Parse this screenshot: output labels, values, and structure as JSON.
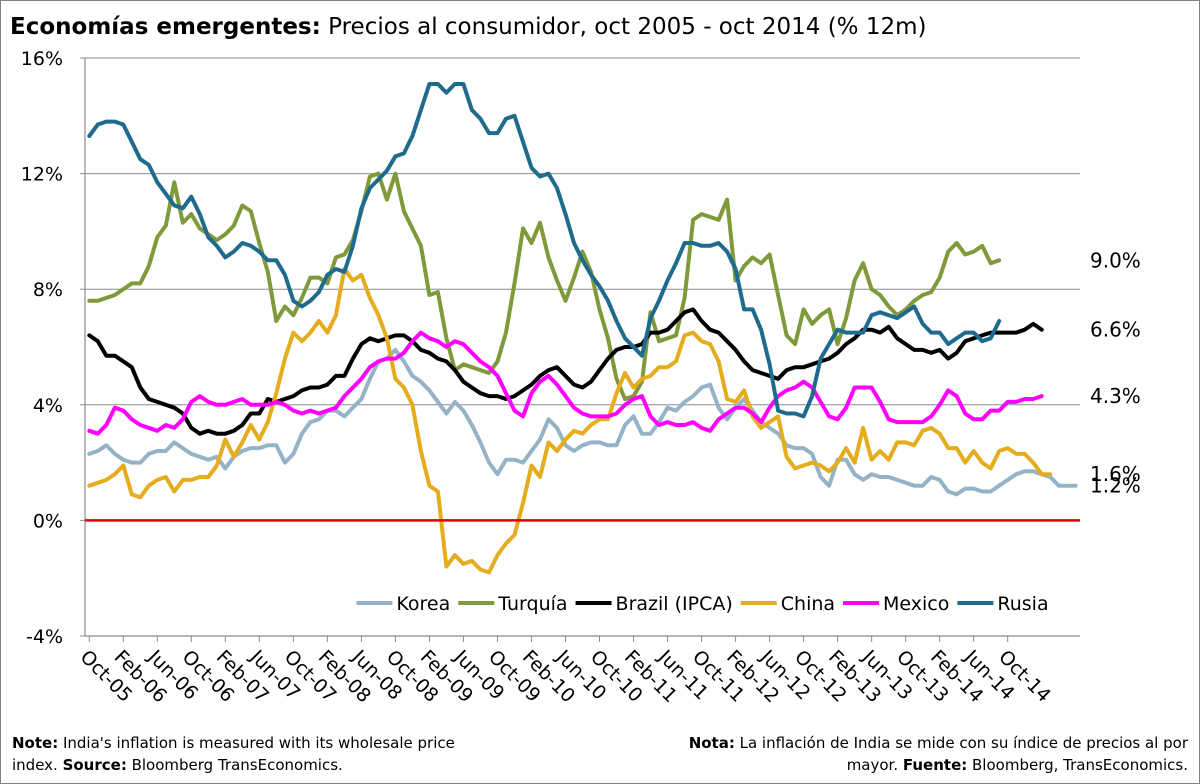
{
  "header": {
    "title_bold": "Economías emergentes:",
    "title_rest": " Precios al consumidor, oct 2005 - oct 2014 (% 12m)"
  },
  "notes": {
    "en_label": "Note:",
    "en_text": " India's inflation is measured with its wholesale price index. ",
    "en_source_label": "Source:",
    "en_source": "  Bloomberg TransEconomics.",
    "es_label": "Nota:",
    "es_text": " La inflación de India se mide con su índice de precios al por mayor. ",
    "es_source_label": "Fuente:",
    "es_source": "  Bloomberg, TransEconomics."
  },
  "chart_data": {
    "type": "line",
    "title": "Economías emergentes: Precios al consumidor, oct 2005 - oct 2014 (% 12m)",
    "xlabel": "",
    "ylabel": "",
    "x_start": "Oct-05",
    "x_end": "Oct-14",
    "x_ticks": [
      "Oct-05",
      "Feb-06",
      "Jun-06",
      "Oct-06",
      "Feb-07",
      "Jun-07",
      "Oct-07",
      "Feb-08",
      "Jun-08",
      "Oct-08",
      "Feb-09",
      "Jun-09",
      "Oct-09",
      "Feb-10",
      "Jun-10",
      "Oct-10",
      "Feb-11",
      "Jun-11",
      "Oct-11",
      "Feb-12",
      "Jun-12",
      "Oct-12",
      "Feb-13",
      "Jun-13",
      "Oct-13",
      "Feb-14",
      "Jun-14",
      "Oct-14"
    ],
    "y_ticks": [
      "-4%",
      "0%",
      "4%",
      "8%",
      "12%",
      "16%"
    ],
    "ylim": [
      -4,
      16
    ],
    "grid": "horizontal",
    "legend_position": "bottom-center",
    "zero_line_color": "#e00000",
    "end_labels": [
      "9.0%",
      "6.6%",
      "4.3%",
      "1.6%",
      "1.2%"
    ],
    "series": [
      {
        "name": "Korea",
        "color": "#95b3c6",
        "values": [
          2.3,
          2.4,
          2.6,
          2.3,
          2.1,
          2.0,
          2.0,
          2.3,
          2.4,
          2.4,
          2.7,
          2.5,
          2.3,
          2.2,
          2.1,
          2.2,
          1.8,
          2.2,
          2.4,
          2.5,
          2.5,
          2.6,
          2.6,
          2.0,
          2.3,
          3.0,
          3.4,
          3.5,
          3.8,
          3.8,
          3.6,
          3.9,
          4.2,
          4.9,
          5.5,
          5.6,
          5.9,
          5.5,
          5.0,
          4.8,
          4.5,
          4.1,
          3.7,
          4.1,
          3.8,
          3.3,
          2.7,
          2.0,
          1.6,
          2.1,
          2.1,
          2.0,
          2.4,
          2.8,
          3.5,
          3.2,
          2.6,
          2.4,
          2.6,
          2.7,
          2.7,
          2.6,
          2.6,
          3.3,
          3.6,
          3.0,
          3.0,
          3.4,
          3.9,
          3.8,
          4.1,
          4.3,
          4.6,
          4.7,
          3.9,
          3.5,
          3.9,
          4.2,
          3.8,
          3.4,
          3.2,
          3.0,
          2.6,
          2.5,
          2.5,
          2.3,
          1.5,
          1.2,
          2.1,
          2.1,
          1.6,
          1.4,
          1.6,
          1.5,
          1.5,
          1.4,
          1.3,
          1.2,
          1.2,
          1.5,
          1.4,
          1.0,
          0.9,
          1.1,
          1.1,
          1.0,
          1.0,
          1.2,
          1.4,
          1.6,
          1.7,
          1.7,
          1.6,
          1.5,
          1.2,
          1.2,
          1.2
        ]
      },
      {
        "name": "Turquía",
        "color": "#7f9a3a",
        "values": [
          7.6,
          7.6,
          7.7,
          7.8,
          8.0,
          8.2,
          8.2,
          8.8,
          9.8,
          10.2,
          11.7,
          10.3,
          10.6,
          10.1,
          9.9,
          9.7,
          9.9,
          10.2,
          10.9,
          10.7,
          9.6,
          8.6,
          6.9,
          7.4,
          7.1,
          7.7,
          8.4,
          8.4,
          8.2,
          9.1,
          9.2,
          9.7,
          10.7,
          11.9,
          12.0,
          11.1,
          12.0,
          10.7,
          10.1,
          9.5,
          7.8,
          7.9,
          6.3,
          5.2,
          5.4,
          5.3,
          5.2,
          5.1,
          5.5,
          6.5,
          8.2,
          10.1,
          9.6,
          10.3,
          9.1,
          8.3,
          7.6,
          8.4,
          9.3,
          8.6,
          7.3,
          6.3,
          4.9,
          4.2,
          4.3,
          4.8,
          7.2,
          6.2,
          6.3,
          6.4,
          7.7,
          10.4,
          10.6,
          10.5,
          10.4,
          11.1,
          8.3,
          8.8,
          9.1,
          8.9,
          9.2,
          7.8,
          6.4,
          6.1,
          7.3,
          6.8,
          7.1,
          7.3,
          6.1,
          7.0,
          8.3,
          8.9,
          8.0,
          7.8,
          7.4,
          7.1,
          7.3,
          7.6,
          7.8,
          7.9,
          8.4,
          9.3,
          9.6,
          9.2,
          9.3,
          9.5,
          8.9,
          9.0
        ]
      },
      {
        "name": "Brazil (IPCA)",
        "color": "#000000",
        "values": [
          6.4,
          6.2,
          5.7,
          5.7,
          5.5,
          5.3,
          4.6,
          4.2,
          4.1,
          4.0,
          3.9,
          3.7,
          3.2,
          3.0,
          3.1,
          3.0,
          3.0,
          3.1,
          3.3,
          3.7,
          3.7,
          4.2,
          4.1,
          4.2,
          4.3,
          4.5,
          4.6,
          4.6,
          4.7,
          5.0,
          5.0,
          5.6,
          6.1,
          6.3,
          6.2,
          6.3,
          6.4,
          6.4,
          6.2,
          5.9,
          5.8,
          5.6,
          5.5,
          5.2,
          4.8,
          4.6,
          4.4,
          4.3,
          4.3,
          4.2,
          4.3,
          4.5,
          4.7,
          5.0,
          5.2,
          5.3,
          5.0,
          4.7,
          4.6,
          4.8,
          5.2,
          5.6,
          5.9,
          6.0,
          6.0,
          6.1,
          6.5,
          6.5,
          6.6,
          6.9,
          7.2,
          7.3,
          6.9,
          6.6,
          6.5,
          6.2,
          5.9,
          5.5,
          5.2,
          5.1,
          5.0,
          4.9,
          5.2,
          5.3,
          5.3,
          5.4,
          5.5,
          5.6,
          5.8,
          6.1,
          6.3,
          6.6,
          6.6,
          6.5,
          6.7,
          6.3,
          6.1,
          5.9,
          5.9,
          5.8,
          5.9,
          5.6,
          5.8,
          6.2,
          6.3,
          6.4,
          6.5,
          6.5,
          6.5,
          6.5,
          6.6,
          6.8,
          6.6
        ]
      },
      {
        "name": "China",
        "color": "#e5ac1e",
        "values": [
          1.2,
          1.3,
          1.4,
          1.6,
          1.9,
          0.9,
          0.8,
          1.2,
          1.4,
          1.5,
          1.0,
          1.4,
          1.4,
          1.5,
          1.5,
          1.9,
          2.8,
          2.2,
          2.7,
          3.3,
          2.8,
          3.4,
          4.4,
          5.6,
          6.5,
          6.2,
          6.5,
          6.9,
          6.5,
          7.1,
          8.7,
          8.3,
          8.5,
          7.7,
          7.1,
          6.3,
          4.9,
          4.6,
          4.0,
          2.4,
          1.2,
          1.0,
          -1.6,
          -1.2,
          -1.5,
          -1.4,
          -1.7,
          -1.8,
          -1.2,
          -0.8,
          -0.5,
          0.6,
          1.9,
          1.5,
          2.7,
          2.4,
          2.8,
          3.1,
          3.0,
          3.3,
          3.5,
          3.5,
          4.4,
          5.1,
          4.6,
          4.9,
          5.0,
          5.3,
          5.3,
          5.5,
          6.4,
          6.5,
          6.2,
          6.1,
          5.5,
          4.2,
          4.1,
          4.5,
          3.6,
          3.2,
          3.4,
          3.6,
          2.2,
          1.8,
          1.9,
          2.0,
          1.9,
          1.7,
          2.0,
          2.5,
          2.0,
          3.2,
          2.1,
          2.4,
          2.1,
          2.7,
          2.7,
          2.6,
          3.1,
          3.2,
          3.0,
          2.5,
          2.5,
          2.0,
          2.4,
          2.0,
          1.8,
          2.4,
          2.5,
          2.3,
          2.3,
          2.0,
          1.6,
          1.6
        ]
      },
      {
        "name": "Mexico",
        "color": "#ff00ff",
        "values": [
          3.1,
          3.0,
          3.3,
          3.9,
          3.8,
          3.5,
          3.3,
          3.2,
          3.1,
          3.3,
          3.2,
          3.5,
          4.1,
          4.3,
          4.1,
          4.0,
          4.0,
          4.1,
          4.2,
          4.0,
          4.0,
          4.0,
          4.1,
          4.0,
          3.8,
          3.7,
          3.8,
          3.7,
          3.8,
          3.9,
          4.3,
          4.6,
          4.9,
          5.3,
          5.5,
          5.6,
          5.6,
          5.8,
          6.2,
          6.5,
          6.3,
          6.2,
          6.0,
          6.2,
          6.1,
          5.8,
          5.5,
          5.3,
          5.0,
          4.4,
          3.8,
          3.6,
          4.4,
          4.8,
          5.0,
          4.7,
          4.3,
          3.9,
          3.7,
          3.6,
          3.6,
          3.6,
          3.7,
          4.0,
          4.2,
          4.3,
          3.6,
          3.3,
          3.4,
          3.3,
          3.3,
          3.4,
          3.2,
          3.1,
          3.5,
          3.7,
          3.9,
          3.9,
          3.7,
          3.4,
          3.9,
          4.3,
          4.5,
          4.6,
          4.8,
          4.6,
          4.1,
          3.6,
          3.5,
          3.9,
          4.6,
          4.6,
          4.6,
          4.1,
          3.5,
          3.4,
          3.4,
          3.4,
          3.4,
          3.6,
          4.0,
          4.5,
          4.3,
          3.7,
          3.5,
          3.5,
          3.8,
          3.8,
          4.1,
          4.1,
          4.2,
          4.2,
          4.3
        ]
      },
      {
        "name": "Rusia",
        "color": "#1f6b8e",
        "values": [
          13.3,
          13.7,
          13.8,
          13.8,
          13.7,
          13.1,
          12.5,
          12.3,
          11.7,
          11.3,
          10.9,
          10.8,
          11.2,
          10.6,
          9.8,
          9.5,
          9.1,
          9.3,
          9.6,
          9.5,
          9.3,
          9.0,
          9.0,
          8.5,
          7.6,
          7.4,
          7.6,
          7.9,
          8.5,
          8.7,
          8.6,
          9.5,
          10.8,
          11.5,
          11.8,
          12.1,
          12.6,
          12.7,
          13.3,
          14.2,
          15.1,
          15.1,
          14.8,
          15.1,
          15.1,
          14.2,
          13.9,
          13.4,
          13.4,
          13.9,
          14.0,
          13.1,
          12.2,
          11.9,
          12.0,
          11.5,
          10.6,
          9.6,
          9.0,
          8.5,
          8.1,
          7.6,
          6.9,
          6.3,
          6.0,
          5.7,
          7.0,
          7.6,
          8.3,
          8.9,
          9.6,
          9.6,
          9.5,
          9.5,
          9.6,
          9.3,
          8.7,
          7.3,
          7.3,
          6.6,
          5.4,
          3.8,
          3.7,
          3.7,
          3.6,
          4.3,
          5.6,
          6.1,
          6.6,
          6.5,
          6.5,
          6.5,
          7.1,
          7.2,
          7.1,
          7.0,
          7.2,
          7.4,
          6.8,
          6.5,
          6.5,
          6.1,
          6.3,
          6.5,
          6.5,
          6.2,
          6.3,
          6.9
        ]
      }
    ]
  }
}
